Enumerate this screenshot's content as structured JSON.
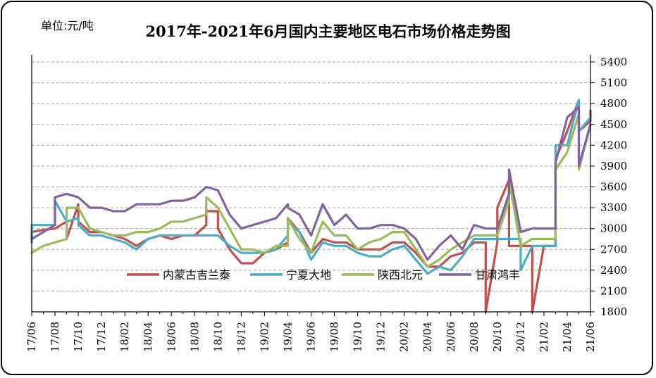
{
  "unit_label": "单位:元/吨",
  "chart_data": {
    "type": "line",
    "title": "2017年-2021年6月国内主要地区电石市场价格走势图",
    "ylim": [
      1800,
      5400
    ],
    "yticks": [
      1800,
      2100,
      2400,
      2700,
      3000,
      3300,
      3600,
      3900,
      4200,
      4500,
      4800,
      5100,
      5400
    ],
    "x_range": [
      "2017-06",
      "2021-06"
    ],
    "xticks": [
      "17/06",
      "17/08",
      "17/10",
      "17/12",
      "18/02",
      "18/04",
      "18/06",
      "18/08",
      "18/10",
      "18/12",
      "19/02",
      "19/04",
      "19/06",
      "19/08",
      "19/10",
      "19/12",
      "20/02",
      "20/04",
      "20/06",
      "20/08",
      "20/10",
      "20/12",
      "21/02",
      "21/04",
      "21/06"
    ],
    "grid": true,
    "legend_position": "bottom-inside",
    "series": [
      {
        "name": "内蒙古吉兰泰",
        "color": "#C0504D",
        "points": [
          [
            "2017-06",
            2800
          ],
          [
            "2017-06",
            2950
          ],
          [
            "2017-07",
            2980
          ],
          [
            "2017-08",
            3000
          ],
          [
            "2017-09",
            3100
          ],
          [
            "2017-09",
            2850
          ],
          [
            "2017-10",
            3350
          ],
          [
            "2017-10",
            3100
          ],
          [
            "2017-11",
            2950
          ],
          [
            "2017-12",
            2950
          ],
          [
            "2018-01",
            2900
          ],
          [
            "2018-02",
            2850
          ],
          [
            "2018-03",
            2750
          ],
          [
            "2018-04",
            2850
          ],
          [
            "2018-05",
            2900
          ],
          [
            "2018-06",
            2850
          ],
          [
            "2018-07",
            2900
          ],
          [
            "2018-08",
            2900
          ],
          [
            "2018-09",
            3050
          ],
          [
            "2018-09",
            3250
          ],
          [
            "2018-10",
            3250
          ],
          [
            "2018-10",
            3000
          ],
          [
            "2018-11",
            2700
          ],
          [
            "2018-12",
            2500
          ],
          [
            "2019-01",
            2500
          ],
          [
            "2019-02",
            2650
          ],
          [
            "2019-03",
            2700
          ],
          [
            "2019-04",
            2800
          ],
          [
            "2019-04",
            3150
          ],
          [
            "2019-05",
            2950
          ],
          [
            "2019-06",
            2650
          ],
          [
            "2019-07",
            2850
          ],
          [
            "2019-08",
            2800
          ],
          [
            "2019-09",
            2800
          ],
          [
            "2019-10",
            2700
          ],
          [
            "2019-11",
            2700
          ],
          [
            "2019-12",
            2700
          ],
          [
            "2020-01",
            2800
          ],
          [
            "2020-02",
            2800
          ],
          [
            "2020-03",
            2650
          ],
          [
            "2020-04",
            2450
          ],
          [
            "2020-05",
            2450
          ],
          [
            "2020-06",
            2600
          ],
          [
            "2020-07",
            2650
          ],
          [
            "2020-08",
            2800
          ],
          [
            "2020-09",
            2800
          ],
          [
            "2020-09",
            1800
          ],
          [
            "2020-10",
            2800
          ],
          [
            "2020-10",
            3300
          ],
          [
            "2020-11",
            3700
          ],
          [
            "2020-11",
            2750
          ],
          [
            "2020-12",
            2750
          ],
          [
            "2021-01",
            2750
          ],
          [
            "2021-01",
            1800
          ],
          [
            "2021-02",
            2750
          ],
          [
            "2021-03",
            2750
          ],
          [
            "2021-03",
            4000
          ],
          [
            "2021-04",
            4400
          ],
          [
            "2021-05",
            4850
          ],
          [
            "2021-05",
            4400
          ],
          [
            "2021-06",
            4550
          ],
          [
            "2021-06",
            4700
          ]
        ]
      },
      {
        "name": "宁夏大地",
        "color": "#4BACC6",
        "points": [
          [
            "2017-06",
            2800
          ],
          [
            "2017-06",
            3050
          ],
          [
            "2017-07",
            3050
          ],
          [
            "2017-08",
            3050
          ],
          [
            "2017-08",
            3400
          ],
          [
            "2017-09",
            3100
          ],
          [
            "2017-10",
            3150
          ],
          [
            "2017-10",
            3050
          ],
          [
            "2017-11",
            2900
          ],
          [
            "2017-12",
            2900
          ],
          [
            "2018-01",
            2850
          ],
          [
            "2018-02",
            2800
          ],
          [
            "2018-03",
            2700
          ],
          [
            "2018-04",
            2850
          ],
          [
            "2018-05",
            2900
          ],
          [
            "2018-06",
            2900
          ],
          [
            "2018-07",
            2900
          ],
          [
            "2018-08",
            2900
          ],
          [
            "2018-09",
            2900
          ],
          [
            "2018-10",
            2900
          ],
          [
            "2018-11",
            2750
          ],
          [
            "2018-12",
            2650
          ],
          [
            "2019-01",
            2650
          ],
          [
            "2019-02",
            2650
          ],
          [
            "2019-03",
            2700
          ],
          [
            "2019-04",
            2900
          ],
          [
            "2019-04",
            3100
          ],
          [
            "2019-05",
            2950
          ],
          [
            "2019-06",
            2550
          ],
          [
            "2019-07",
            2800
          ],
          [
            "2019-08",
            2750
          ],
          [
            "2019-09",
            2750
          ],
          [
            "2019-10",
            2650
          ],
          [
            "2019-11",
            2600
          ],
          [
            "2019-12",
            2600
          ],
          [
            "2020-01",
            2700
          ],
          [
            "2020-02",
            2750
          ],
          [
            "2020-03",
            2550
          ],
          [
            "2020-04",
            2350
          ],
          [
            "2020-05",
            2450
          ],
          [
            "2020-06",
            2400
          ],
          [
            "2020-07",
            2600
          ],
          [
            "2020-08",
            2850
          ],
          [
            "2020-09",
            2850
          ],
          [
            "2020-10",
            2850
          ],
          [
            "2020-11",
            2850
          ],
          [
            "2020-12",
            2850
          ],
          [
            "2020-12",
            2400
          ],
          [
            "2021-01",
            2750
          ],
          [
            "2021-02",
            2750
          ],
          [
            "2021-03",
            2750
          ],
          [
            "2021-03",
            4200
          ],
          [
            "2021-04",
            4200
          ],
          [
            "2021-05",
            4850
          ],
          [
            "2021-05",
            4400
          ],
          [
            "2021-06",
            4600
          ],
          [
            "2021-06",
            4600
          ]
        ]
      },
      {
        "name": "陕西北元",
        "color": "#9BBB59",
        "points": [
          [
            "2017-06",
            2650
          ],
          [
            "2017-07",
            2750
          ],
          [
            "2017-08",
            2800
          ],
          [
            "2017-09",
            2850
          ],
          [
            "2017-09",
            3300
          ],
          [
            "2017-10",
            3300
          ],
          [
            "2017-11",
            3000
          ],
          [
            "2017-12",
            2950
          ],
          [
            "2018-01",
            2900
          ],
          [
            "2018-02",
            2900
          ],
          [
            "2018-03",
            2950
          ],
          [
            "2018-04",
            2950
          ],
          [
            "2018-05",
            3000
          ],
          [
            "2018-06",
            3100
          ],
          [
            "2018-07",
            3100
          ],
          [
            "2018-08",
            3150
          ],
          [
            "2018-09",
            3200
          ],
          [
            "2018-09",
            3450
          ],
          [
            "2018-10",
            3300
          ],
          [
            "2018-11",
            3000
          ],
          [
            "2018-12",
            2700
          ],
          [
            "2019-01",
            2700
          ],
          [
            "2019-02",
            2650
          ],
          [
            "2019-03",
            2750
          ],
          [
            "2019-04",
            2750
          ],
          [
            "2019-04",
            3150
          ],
          [
            "2019-05",
            2850
          ],
          [
            "2019-06",
            2650
          ],
          [
            "2019-07",
            3100
          ],
          [
            "2019-08",
            2900
          ],
          [
            "2019-09",
            2900
          ],
          [
            "2019-10",
            2700
          ],
          [
            "2019-11",
            2800
          ],
          [
            "2019-12",
            2850
          ],
          [
            "2020-01",
            2950
          ],
          [
            "2020-02",
            2950
          ],
          [
            "2020-03",
            2700
          ],
          [
            "2020-04",
            2450
          ],
          [
            "2020-05",
            2550
          ],
          [
            "2020-06",
            2700
          ],
          [
            "2020-07",
            2800
          ],
          [
            "2020-08",
            2900
          ],
          [
            "2020-09",
            2900
          ],
          [
            "2020-10",
            2900
          ],
          [
            "2020-11",
            3400
          ],
          [
            "2020-11",
            3700
          ],
          [
            "2020-12",
            2750
          ],
          [
            "2021-01",
            2850
          ],
          [
            "2021-02",
            2850
          ],
          [
            "2021-03",
            2850
          ],
          [
            "2021-03",
            3850
          ],
          [
            "2021-04",
            4100
          ],
          [
            "2021-05",
            4650
          ],
          [
            "2021-05",
            3850
          ],
          [
            "2021-06",
            4500
          ]
        ]
      },
      {
        "name": "甘肃鸿丰",
        "color": "#8064A2",
        "points": [
          [
            "2017-06",
            2850
          ],
          [
            "2017-07",
            2950
          ],
          [
            "2017-08",
            3050
          ],
          [
            "2017-08",
            3450
          ],
          [
            "2017-09",
            3500
          ],
          [
            "2017-10",
            3450
          ],
          [
            "2017-11",
            3300
          ],
          [
            "2017-12",
            3300
          ],
          [
            "2018-01",
            3250
          ],
          [
            "2018-02",
            3250
          ],
          [
            "2018-03",
            3350
          ],
          [
            "2018-04",
            3350
          ],
          [
            "2018-05",
            3350
          ],
          [
            "2018-06",
            3400
          ],
          [
            "2018-07",
            3400
          ],
          [
            "2018-08",
            3450
          ],
          [
            "2018-09",
            3600
          ],
          [
            "2018-10",
            3550
          ],
          [
            "2018-11",
            3200
          ],
          [
            "2018-12",
            3000
          ],
          [
            "2019-01",
            3050
          ],
          [
            "2019-02",
            3100
          ],
          [
            "2019-03",
            3150
          ],
          [
            "2019-04",
            3350
          ],
          [
            "2019-04",
            3300
          ],
          [
            "2019-05",
            3200
          ],
          [
            "2019-06",
            2900
          ],
          [
            "2019-07",
            3350
          ],
          [
            "2019-08",
            3050
          ],
          [
            "2019-09",
            3200
          ],
          [
            "2019-10",
            3000
          ],
          [
            "2019-11",
            3000
          ],
          [
            "2019-12",
            3050
          ],
          [
            "2020-01",
            3050
          ],
          [
            "2020-02",
            3000
          ],
          [
            "2020-03",
            2850
          ],
          [
            "2020-04",
            2550
          ],
          [
            "2020-05",
            2750
          ],
          [
            "2020-06",
            2900
          ],
          [
            "2020-07",
            2700
          ],
          [
            "2020-08",
            3050
          ],
          [
            "2020-09",
            3000
          ],
          [
            "2020-10",
            3000
          ],
          [
            "2020-11",
            3500
          ],
          [
            "2020-11",
            3850
          ],
          [
            "2020-12",
            2950
          ],
          [
            "2021-01",
            3000
          ],
          [
            "2021-02",
            3000
          ],
          [
            "2021-03",
            3000
          ],
          [
            "2021-03",
            3950
          ],
          [
            "2021-04",
            4600
          ],
          [
            "2021-05",
            4750
          ],
          [
            "2021-05",
            3900
          ],
          [
            "2021-06",
            4500
          ]
        ]
      }
    ]
  }
}
